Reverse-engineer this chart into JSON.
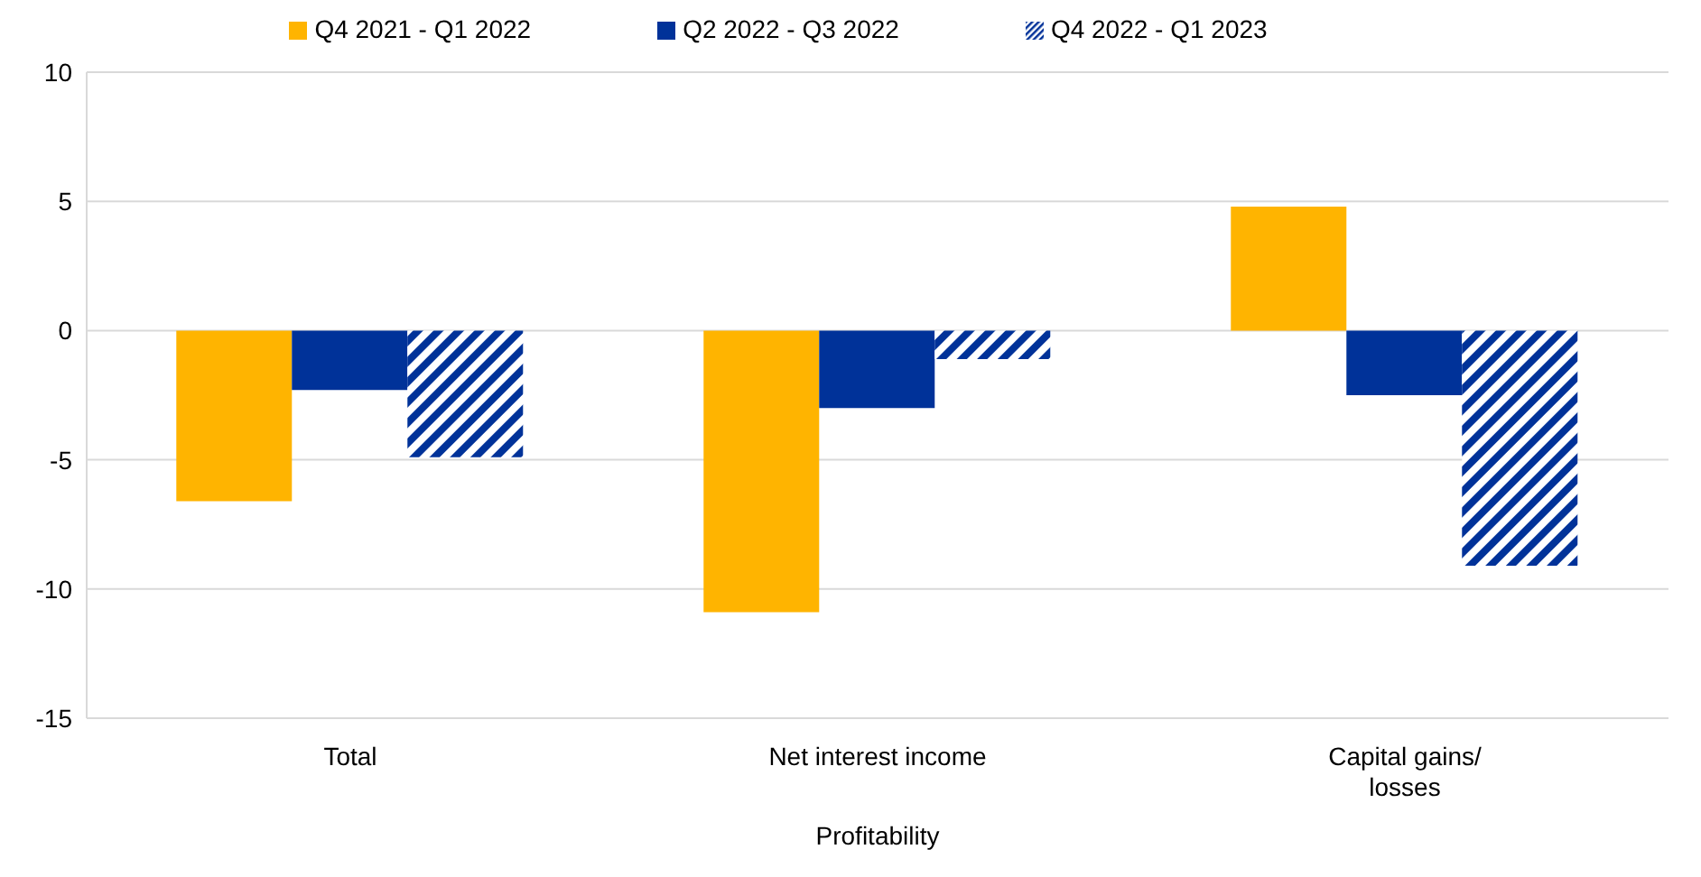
{
  "chart_data": {
    "type": "bar",
    "xlabel": "Profitability",
    "categories": [
      "Total",
      "Net interest income",
      "Capital gains/ losses"
    ],
    "series": [
      {
        "name": "Q4 2021 - Q1 2022",
        "color": "#ffb400",
        "values": [
          -6.6,
          -10.9,
          4.8
        ]
      },
      {
        "name": "Q2 2022 - Q3 2022",
        "color": "#003299",
        "values": [
          -2.3,
          -3.0,
          -2.5
        ]
      },
      {
        "name": "Q4 2022 - Q1 2023",
        "color": "#003299",
        "values": [
          -4.9,
          -1.1,
          -9.1
        ]
      }
    ],
    "ylim": [
      -15,
      10
    ],
    "yticks": [
      -15,
      -10,
      -5,
      0,
      5,
      10
    ],
    "grid": "y",
    "legend": "top"
  }
}
